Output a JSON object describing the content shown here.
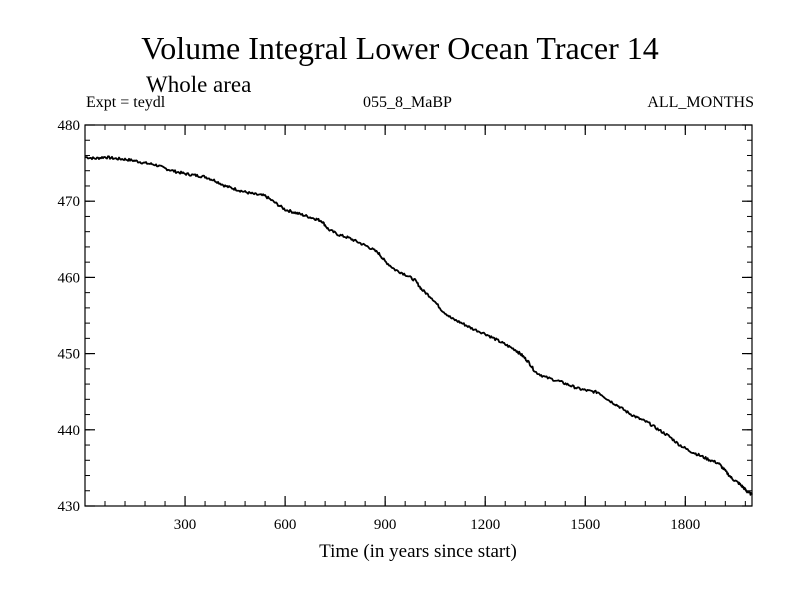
{
  "header": {
    "title": "Volume Integral Lower Ocean Tracer 14",
    "subtitle": "Whole area",
    "expt_label": "Expt = teydl",
    "experiment_id": "055_8_MaBP",
    "months_label": "ALL_MONTHS"
  },
  "chart_data": {
    "type": "line",
    "title": "Volume Integral Lower Ocean Tracer 14",
    "xlabel": "Time (in years since start)",
    "ylabel": "",
    "xlim": [
      0,
      2000
    ],
    "ylim": [
      430,
      480
    ],
    "x_ticks": [
      300,
      600,
      900,
      1200,
      1500,
      1800
    ],
    "y_ticks": [
      430,
      440,
      450,
      460,
      470,
      480
    ],
    "series": [
      {
        "name": "Volume Integral Lower Ocean Tracer 14",
        "color": "#000000",
        "points": [
          [
            0,
            475.8
          ],
          [
            30,
            475.6
          ],
          [
            60,
            475.8
          ],
          [
            90,
            475.6
          ],
          [
            120,
            475.5
          ],
          [
            150,
            475.3
          ],
          [
            180,
            475.0
          ],
          [
            210,
            474.8
          ],
          [
            240,
            474.3
          ],
          [
            270,
            473.9
          ],
          [
            300,
            473.6
          ],
          [
            330,
            473.4
          ],
          [
            360,
            473.2
          ],
          [
            390,
            472.7
          ],
          [
            420,
            472.0
          ],
          [
            450,
            471.6
          ],
          [
            480,
            471.2
          ],
          [
            510,
            470.9
          ],
          [
            540,
            470.7
          ],
          [
            570,
            469.8
          ],
          [
            600,
            468.9
          ],
          [
            630,
            468.5
          ],
          [
            660,
            468.1
          ],
          [
            690,
            467.7
          ],
          [
            710,
            467.4
          ],
          [
            730,
            466.3
          ],
          [
            760,
            465.6
          ],
          [
            790,
            465.2
          ],
          [
            820,
            464.6
          ],
          [
            850,
            464.0
          ],
          [
            880,
            463.2
          ],
          [
            900,
            462.1
          ],
          [
            930,
            461.0
          ],
          [
            960,
            460.4
          ],
          [
            990,
            459.6
          ],
          [
            1010,
            458.4
          ],
          [
            1040,
            457.3
          ],
          [
            1070,
            455.7
          ],
          [
            1100,
            454.6
          ],
          [
            1130,
            454.0
          ],
          [
            1160,
            453.3
          ],
          [
            1200,
            452.6
          ],
          [
            1230,
            451.9
          ],
          [
            1260,
            451.2
          ],
          [
            1290,
            450.5
          ],
          [
            1310,
            449.8
          ],
          [
            1330,
            448.9
          ],
          [
            1350,
            447.6
          ],
          [
            1380,
            446.9
          ],
          [
            1420,
            446.4
          ],
          [
            1450,
            445.9
          ],
          [
            1480,
            445.4
          ],
          [
            1510,
            445.1
          ],
          [
            1540,
            444.9
          ],
          [
            1570,
            443.9
          ],
          [
            1600,
            443.1
          ],
          [
            1630,
            442.2
          ],
          [
            1660,
            441.5
          ],
          [
            1690,
            440.9
          ],
          [
            1720,
            440.0
          ],
          [
            1750,
            439.2
          ],
          [
            1780,
            438.1
          ],
          [
            1810,
            437.3
          ],
          [
            1840,
            436.7
          ],
          [
            1870,
            436.1
          ],
          [
            1900,
            435.6
          ],
          [
            1920,
            434.6
          ],
          [
            1940,
            433.6
          ],
          [
            1960,
            433.0
          ],
          [
            1975,
            432.4
          ],
          [
            1985,
            431.9
          ],
          [
            2000,
            431.5
          ]
        ]
      }
    ]
  }
}
